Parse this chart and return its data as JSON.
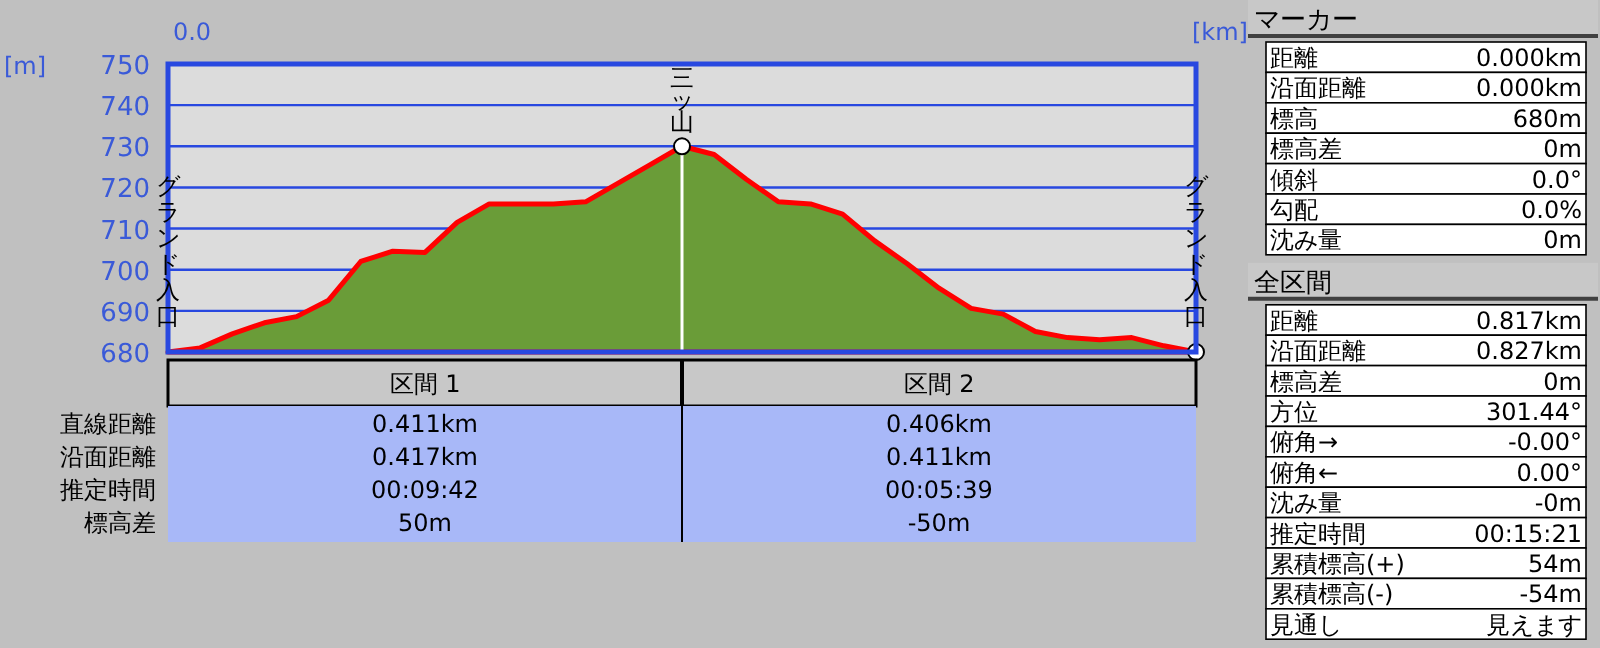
{
  "chart_data": [
    {
      "type": "area",
      "xlabel": "[km]",
      "ylabel": "[m]",
      "ylim": [
        680,
        750
      ],
      "yticks": [
        680,
        690,
        700,
        710,
        720,
        730,
        740,
        750
      ],
      "grid": "y",
      "categories": [
        null,
        null,
        null,
        null,
        null,
        null,
        null,
        null,
        null,
        null,
        null,
        null,
        null,
        null,
        null,
        null,
        null,
        null,
        null,
        null,
        null,
        null,
        null,
        null,
        null,
        null,
        null,
        null,
        null,
        null,
        null,
        null,
        null
      ],
      "series": [
        {
          "type": "area",
          "color": "#6a9c38",
          "values": [
            680,
            681,
            684.4,
            687.1,
            688.6,
            692.6,
            702,
            704.5,
            704.2,
            711.5,
            716,
            716,
            716,
            716.5,
            721,
            725.5,
            730,
            728,
            722,
            716.5,
            716,
            713.5,
            707,
            701.5,
            695.5,
            690.6,
            689.2,
            685,
            683.5,
            683,
            683.5,
            681.5,
            680
          ]
        },
        {
          "type": "scatter",
          "color": "#ffffff",
          "marker": "circle",
          "values": [
            null,
            null,
            null,
            null,
            null,
            null,
            null,
            null,
            null,
            null,
            null,
            null,
            null,
            null,
            null,
            null,
            730,
            null,
            null,
            null,
            null,
            null,
            null,
            null,
            null,
            null,
            null,
            null,
            null,
            null,
            null,
            null,
            680
          ]
        }
      ],
      "annotations": [
        "0.0",
        "グランド入口",
        "グランド入口",
        "三ッ山"
      ]
    },
    {
      "type": "other",
      "annotations": [
        "区間 1",
        "区間 2",
        "直線距離",
        "0.411km",
        "0.406km",
        "沿面距離",
        "0.417km",
        "0.411km",
        "推定時間",
        "00:09:42",
        "00:05:39",
        "標高差",
        "50m",
        "-50m"
      ]
    },
    {
      "type": "other",
      "title": "マーカー",
      "annotations": [
        "距離",
        "0.000km",
        "沿面距離",
        "0.000km",
        "標高",
        "680m",
        "標高差",
        "0m",
        "傾斜",
        "0.0°",
        "勾配",
        "0.0%",
        "沈み量",
        "0m"
      ]
    },
    {
      "type": "other",
      "title": "全区間",
      "annotations": [
        "距離",
        "0.817km",
        "沿面距離",
        "0.827km",
        "標高差",
        "0m",
        "方位",
        "301.44°",
        "俯角→",
        "-0.00°",
        "俯角←",
        "0.00°",
        "沈み量",
        "-0m",
        "推定時間",
        "00:15:21",
        "累積標高(+)",
        "54m",
        "累積標高(-)",
        "-54m",
        "見通し",
        "見えます"
      ]
    }
  ]
}
